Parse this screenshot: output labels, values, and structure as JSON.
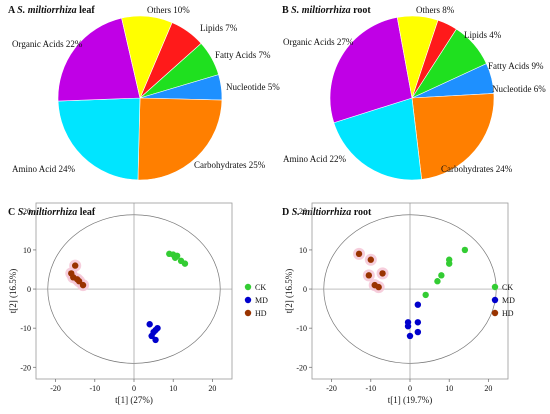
{
  "chart_data": [
    {
      "type": "pie",
      "panel": "A",
      "title_species": "S. miltiorrhiza",
      "title_tissue": "leaf",
      "slices": [
        {
          "label": "Lipids 7%",
          "value": 7,
          "color": "#ff1a1a"
        },
        {
          "label": "Fatty Acids 7%",
          "value": 7,
          "color": "#1fe01f"
        },
        {
          "label": "Nucleotide 5%",
          "value": 5,
          "color": "#1e90ff"
        },
        {
          "label": "Carbohydrates 25%",
          "value": 25,
          "color": "#ff7f00"
        },
        {
          "label": "Amino Acid 24%",
          "value": 24,
          "color": "#00e5ff"
        },
        {
          "label": "Organic Acids 22%",
          "value": 22,
          "color": "#c000e6"
        },
        {
          "label": "Others 10%",
          "value": 10,
          "color": "#ffff00"
        }
      ]
    },
    {
      "type": "pie",
      "panel": "B",
      "title_species": "S. miltiorrhiza",
      "title_tissue": "root",
      "slices": [
        {
          "label": "Lipids 4%",
          "value": 4,
          "color": "#ff1a1a"
        },
        {
          "label": "Fatty Acids 9%",
          "value": 9,
          "color": "#1fe01f"
        },
        {
          "label": "Nucleotide 6%",
          "value": 6,
          "color": "#1e90ff"
        },
        {
          "label": "Carbohydrates 24%",
          "value": 24,
          "color": "#ff7f00"
        },
        {
          "label": "Amino Acid 22%",
          "value": 22,
          "color": "#00e5ff"
        },
        {
          "label": "Organic Acids 27%",
          "value": 27,
          "color": "#c000e6"
        },
        {
          "label": "Others 8%",
          "value": 8,
          "color": "#ffff00"
        }
      ]
    },
    {
      "type": "scatter",
      "panel": "C",
      "title_species": "S. miltiorrhiza",
      "title_tissue": "leaf",
      "xlabel": "t[1] (27%)",
      "ylabel": "t[2] (16.5%)",
      "xlim": [
        -25,
        25
      ],
      "ylim": [
        -23,
        22
      ],
      "xticks": [
        -20,
        -10,
        0,
        10,
        20
      ],
      "yticks": [
        -20,
        -10,
        0,
        10,
        20
      ],
      "series": [
        {
          "name": "CK",
          "color": "#33cc33",
          "points": [
            [
              9,
              9
            ],
            [
              10,
              8.8
            ],
            [
              11,
              8.5
            ],
            [
              10.5,
              8
            ],
            [
              12,
              7.2
            ],
            [
              13,
              6.5
            ]
          ]
        },
        {
          "name": "MD",
          "color": "#0000cc",
          "points": [
            [
              4,
              -9
            ],
            [
              5.5,
              -10.5
            ],
            [
              5,
              -11
            ],
            [
              6,
              -10
            ],
            [
              4.5,
              -12
            ],
            [
              5.5,
              -13
            ]
          ]
        },
        {
          "name": "HD",
          "color": "#993300",
          "points": [
            [
              -15,
              6
            ],
            [
              -16,
              4
            ],
            [
              -15.5,
              3
            ],
            [
              -14.5,
              2.5
            ],
            [
              -14,
              2
            ],
            [
              -13,
              1
            ]
          ]
        }
      ]
    },
    {
      "type": "scatter",
      "panel": "D",
      "title_species": "S. miltiorrhiza",
      "title_tissue": "root",
      "xlabel": "t[1] (19.7%)",
      "ylabel": "t[2] (16.5%)",
      "xlim": [
        -25,
        25
      ],
      "ylim": [
        -23,
        22
      ],
      "xticks": [
        -20,
        -10,
        0,
        10,
        20
      ],
      "yticks": [
        -20,
        -10,
        0,
        10,
        20
      ],
      "series": [
        {
          "name": "CK",
          "color": "#33cc33",
          "points": [
            [
              14,
              10
            ],
            [
              10,
              7.5
            ],
            [
              10,
              6.5
            ],
            [
              8,
              3.5
            ],
            [
              7,
              2
            ],
            [
              4,
              -1.5
            ]
          ]
        },
        {
          "name": "MD",
          "color": "#0000cc",
          "points": [
            [
              2,
              -4
            ],
            [
              -0.5,
              -8.5
            ],
            [
              2,
              -8.5
            ],
            [
              -0.5,
              -9.5
            ],
            [
              2,
              -11
            ],
            [
              0,
              -12
            ]
          ]
        },
        {
          "name": "HD",
          "color": "#993300",
          "points": [
            [
              -13,
              9
            ],
            [
              -10,
              7.5
            ],
            [
              -7,
              4
            ],
            [
              -10.5,
              3.5
            ],
            [
              -9,
              1
            ],
            [
              -8,
              0.5
            ]
          ]
        }
      ]
    }
  ],
  "legend": {
    "entries": [
      "CK",
      "MD",
      "HD"
    ]
  }
}
